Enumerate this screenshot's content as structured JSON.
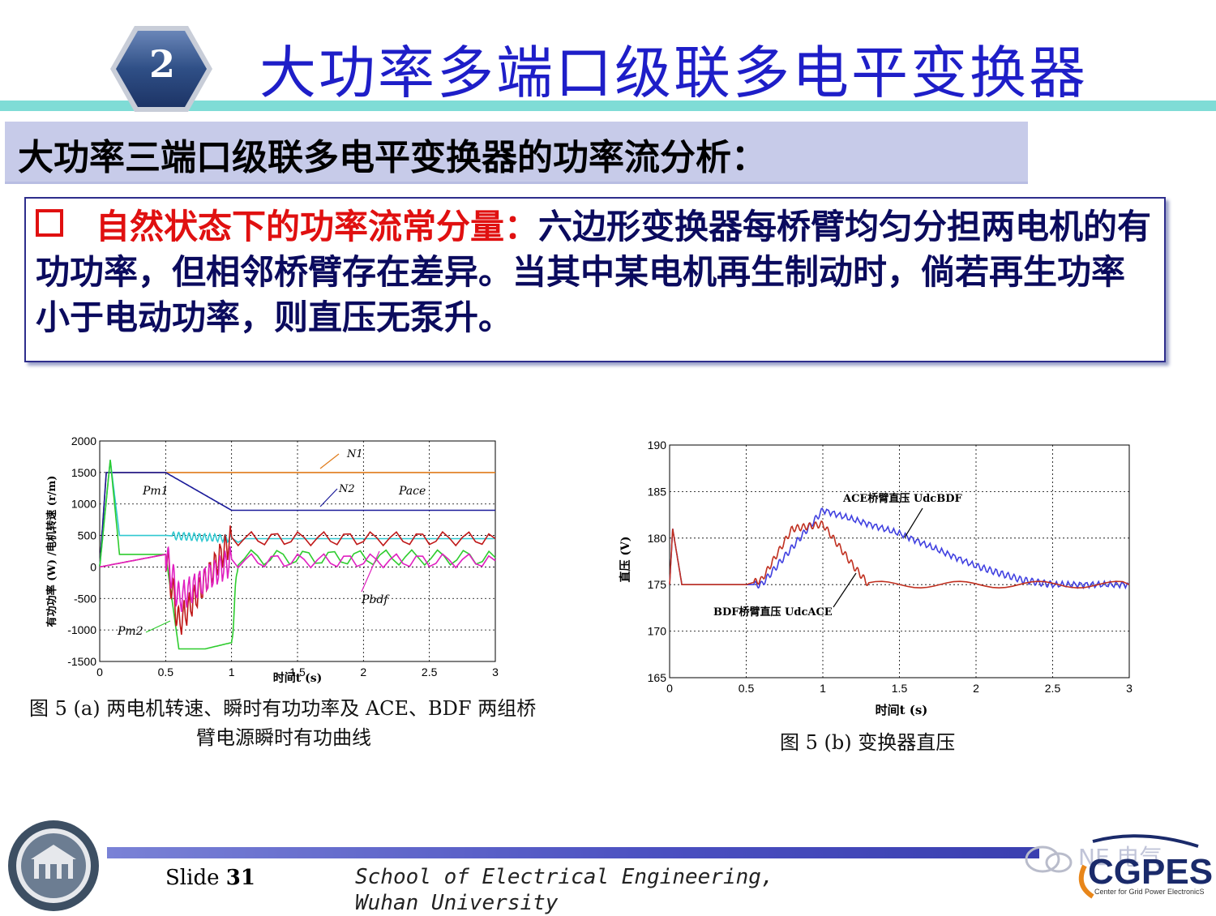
{
  "header": {
    "badge_number": "2",
    "title": "大功率多端口级联多电平变换器"
  },
  "subtitle": "大功率三端口级联多电平变换器的功率流分析：",
  "bullet": {
    "icon": "hollow-square-bullet",
    "lead": "自然状态下的功率流常分量：",
    "body": "六边形变换器每桥臂均匀分担两电机的有功功率，但相邻桥臂存在差异。当其中某电机再生制动时，倘若再生功率小于电动功率，则直压无泵升。"
  },
  "figure_a": {
    "caption_line1": "图 5 (a)    两电机转速、瞬时有功功率及 ACE、BDF 两组桥",
    "caption_line2": "臂电源瞬时有功曲线",
    "ylabel": "有功功率 (W) /电机转速 (r/m)",
    "xlabel": "时间t (s)",
    "annotations": [
      "N1",
      "N2",
      "Pm1",
      "Pace",
      "Pbdf",
      "Pm2"
    ]
  },
  "figure_b": {
    "caption": "图 5 (b)    变换器直压",
    "ylabel": "直压 (V)",
    "xlabel": "时间t (s)",
    "annotations": [
      "ACE桥臂直压 UdcBDF",
      "BDF桥臂直压 UdcACE"
    ]
  },
  "chart_data": [
    {
      "type": "line",
      "xlabel": "时间t (s)",
      "ylabel": "有功功率 (W) /电机转速 (r/m)",
      "xlim": [
        0,
        3
      ],
      "ylim": [
        -1500,
        2000
      ],
      "xticks": [
        "0",
        "0.5",
        "1",
        "1.5",
        "2",
        "2.5",
        "3"
      ],
      "yticks": [
        "2000",
        "1500",
        "1000",
        "500",
        "0",
        "-500",
        "-1000",
        "-1500"
      ],
      "grid": true,
      "series": [
        {
          "name": "N1",
          "color": "#e07b1a",
          "x": [
            0,
            0.05,
            0.1,
            3
          ],
          "y": [
            0,
            1500,
            1500,
            1500
          ]
        },
        {
          "name": "N2",
          "color": "#1a1a9a",
          "x": [
            0,
            0.05,
            0.1,
            0.5,
            1.0,
            3
          ],
          "y": [
            0,
            1500,
            1500,
            1500,
            900,
            900
          ]
        },
        {
          "name": "Pm1",
          "color": "#30c8d0",
          "x": [
            0,
            0.08,
            0.15,
            0.3,
            0.5,
            0.7,
            1.0,
            3
          ],
          "y": [
            0,
            1700,
            500,
            500,
            500,
            480,
            450,
            450
          ]
        },
        {
          "name": "Pm2",
          "color": "#2ecc2e",
          "x": [
            0,
            0.08,
            0.15,
            0.3,
            0.5,
            0.6,
            0.8,
            1.0,
            1.05,
            3
          ],
          "y": [
            0,
            1700,
            200,
            200,
            200,
            -1300,
            -1300,
            -1200,
            150,
            150
          ]
        },
        {
          "name": "Pace",
          "color": "#c01818",
          "x": [
            0,
            0.5,
            0.6,
            1.0,
            3
          ],
          "y": [
            0,
            200,
            -900,
            450,
            450
          ]
        },
        {
          "name": "Pbdf",
          "color": "#e020c0",
          "x": [
            0,
            0.5,
            0.6,
            1.0,
            3
          ],
          "y": [
            0,
            200,
            -500,
            100,
            100
          ]
        }
      ]
    },
    {
      "type": "line",
      "xlabel": "时间t (s)",
      "ylabel": "直压 (V)",
      "xlim": [
        0,
        3
      ],
      "ylim": [
        165,
        190
      ],
      "xticks": [
        "0",
        "0.5",
        "1",
        "1.5",
        "2",
        "2.5",
        "3"
      ],
      "yticks": [
        "190",
        "185",
        "180",
        "175",
        "170",
        "165"
      ],
      "grid": true,
      "series": [
        {
          "name": "UdcBDF",
          "color": "#4040e0",
          "x": [
            0,
            0.02,
            0.08,
            0.5,
            0.6,
            0.8,
            1.0,
            1.5,
            2.0,
            2.3,
            2.5,
            3
          ],
          "y": [
            175,
            181,
            175,
            175,
            175,
            179,
            183,
            180.5,
            177,
            175.5,
            175,
            175
          ]
        },
        {
          "name": "UdcACE",
          "color": "#c03020",
          "x": [
            0,
            0.02,
            0.08,
            0.5,
            0.6,
            0.8,
            1.0,
            1.2,
            1.3,
            3
          ],
          "y": [
            175,
            181,
            175,
            175,
            175.5,
            181,
            181.5,
            177,
            175,
            175
          ]
        }
      ]
    }
  ],
  "footer": {
    "slide_prefix": "Slide",
    "slide_number": "31",
    "school": "School of Electrical Engineering, Wuhan University",
    "wechat_label": "NE 电气",
    "logo_text": "CGPES",
    "logo_subtitle": "Center for Grid Power ElectronicS"
  }
}
